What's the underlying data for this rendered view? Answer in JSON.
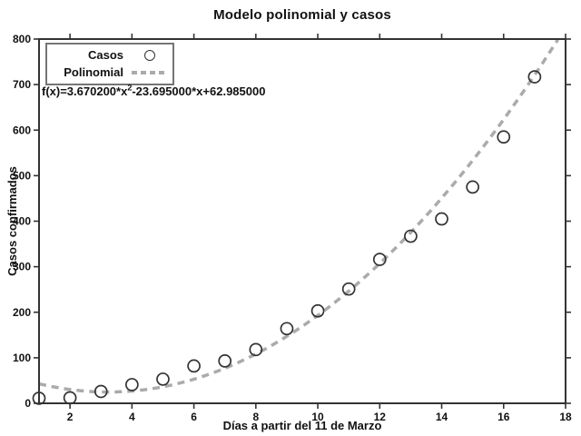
{
  "colors": {
    "axis": "#333333",
    "text": "#111111",
    "marker": "#333333",
    "poly_line": "#ababab",
    "legend_border": "#757575",
    "background": "#ffffff"
  },
  "equation": {
    "prefix": "f(x)=3.670200*x",
    "sup": "2",
    "suffix": "-23.695000*x+62.985000",
    "full_text": "f(x)=3.670200*x^2-23.695000*x+62.985000"
  },
  "chart_data": {
    "type": "scatter",
    "title": "Modelo polinomial y casos",
    "xlabel": "Días a partir del 11 de Marzo",
    "ylabel": "Casos confirmados",
    "xlim": [
      1,
      18
    ],
    "ylim": [
      0,
      800
    ],
    "xticks": [
      2,
      4,
      6,
      8,
      10,
      12,
      14,
      16,
      18
    ],
    "yticks": [
      0,
      100,
      200,
      300,
      400,
      500,
      600,
      700,
      800
    ],
    "grid": false,
    "legend_position": "top-left",
    "x": [
      1,
      2,
      3,
      4,
      5,
      6,
      7,
      8,
      9,
      10,
      11,
      12,
      13,
      14,
      15,
      16,
      17
    ],
    "series": [
      {
        "name": "Casos",
        "type": "scatter",
        "marker": "circle",
        "color": "#333333",
        "values": [
          11,
          12,
          26,
          41,
          53,
          82,
          93,
          118,
          164,
          203,
          251,
          316,
          367,
          405,
          475,
          585,
          717
        ]
      },
      {
        "name": "Polinomial",
        "type": "line",
        "style": "dashed",
        "color": "#ababab",
        "poly_coefficients": [
          3.6702,
          -23.695,
          62.985
        ]
      }
    ]
  }
}
